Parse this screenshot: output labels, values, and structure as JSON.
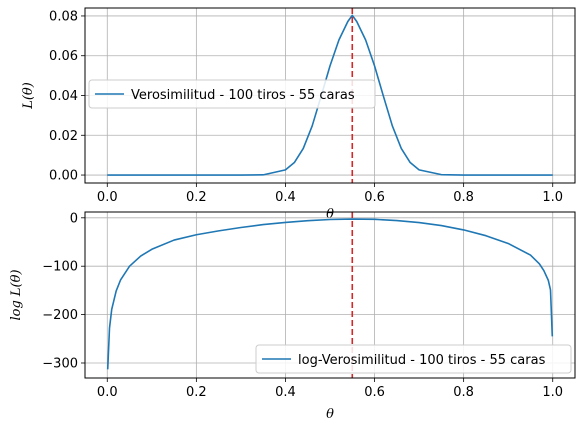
{
  "chart_data": [
    {
      "type": "line",
      "title": "",
      "xlabel": "θ",
      "ylabel": "L(θ)",
      "xlim": [
        -0.05,
        1.05
      ],
      "ylim": [
        -0.004,
        0.084
      ],
      "xticks": [
        0.0,
        0.2,
        0.4,
        0.6,
        0.8,
        1.0
      ],
      "xtick_labels": [
        "0.0",
        "0.2",
        "0.4",
        "0.6",
        "0.8",
        "1.0"
      ],
      "yticks": [
        0.0,
        0.02,
        0.04,
        0.06,
        0.08
      ],
      "ytick_labels": [
        "0.00",
        "0.02",
        "0.04",
        "0.06",
        "0.08"
      ],
      "grid": true,
      "legend_position": "center-left",
      "series": [
        {
          "name": "Verosimilitud - 100 tiros - 55 caras",
          "color": "#1f77b4",
          "x": [
            0.0,
            0.05,
            0.1,
            0.15,
            0.2,
            0.25,
            0.3,
            0.35,
            0.4,
            0.42,
            0.44,
            0.46,
            0.48,
            0.5,
            0.52,
            0.54,
            0.55,
            0.56,
            0.58,
            0.6,
            0.62,
            0.64,
            0.66,
            0.68,
            0.7,
            0.75,
            0.8,
            0.85,
            0.9,
            0.95,
            1.0
          ],
          "y": [
            0.0,
            0.0,
            0.0,
            0.0,
            0.0,
            0.0,
            0.0,
            0.0001,
            0.0026,
            0.0063,
            0.0134,
            0.0247,
            0.0396,
            0.0549,
            0.0679,
            0.0772,
            0.0803,
            0.0772,
            0.0679,
            0.0549,
            0.0396,
            0.0247,
            0.0134,
            0.0063,
            0.0026,
            0.0002,
            0.0,
            0.0,
            0.0,
            0.0,
            0.0
          ]
        }
      ],
      "vline": {
        "x": 0.55,
        "color": "#d62728",
        "style": "dashed"
      }
    },
    {
      "type": "line",
      "title": "",
      "xlabel": "θ",
      "ylabel": "log L(θ)",
      "xlim": [
        -0.05,
        1.05
      ],
      "ylim": [
        -331,
        12
      ],
      "xticks": [
        0.0,
        0.2,
        0.4,
        0.6,
        0.8,
        1.0
      ],
      "xtick_labels": [
        "0.0",
        "0.2",
        "0.4",
        "0.6",
        "0.8",
        "1.0"
      ],
      "yticks": [
        -300,
        -200,
        -100,
        0
      ],
      "ytick_labels": [
        "−300",
        "−200",
        "−100",
        "0"
      ],
      "grid": true,
      "legend_position": "lower-right",
      "series": [
        {
          "name": "log-Verosimilitud - 100 tiros - 55 caras",
          "color": "#1f77b4",
          "x": [
            0.001,
            0.005,
            0.01,
            0.02,
            0.03,
            0.05,
            0.075,
            0.1,
            0.15,
            0.2,
            0.25,
            0.3,
            0.35,
            0.4,
            0.45,
            0.5,
            0.55,
            0.6,
            0.65,
            0.7,
            0.75,
            0.8,
            0.85,
            0.9,
            0.95,
            0.97,
            0.98,
            0.99,
            0.995,
            0.999
          ],
          "y": [
            -313,
            -228,
            -189,
            -151,
            -128,
            -100,
            -79,
            -65,
            -46,
            -35,
            -27,
            -20,
            -14,
            -9.5,
            -5.9,
            -3.5,
            -2.6,
            -3.2,
            -5.6,
            -9.8,
            -16,
            -25,
            -37,
            -53,
            -77,
            -95,
            -109,
            -129,
            -149,
            -245
          ]
        }
      ],
      "vline": {
        "x": 0.55,
        "color": "#d62728",
        "style": "dashed"
      }
    }
  ]
}
